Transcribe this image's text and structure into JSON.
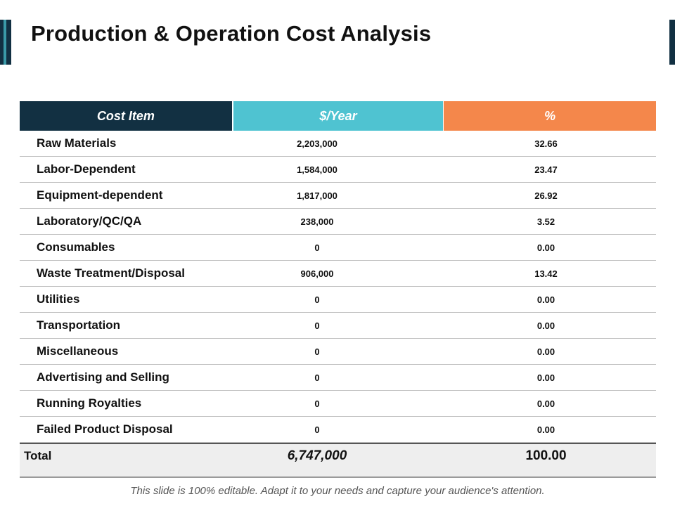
{
  "slide": {
    "title": "Production & Operation Cost Analysis",
    "footer": "This slide is 100% editable. Adapt it to your needs and capture your audience's attention."
  },
  "table": {
    "headers": [
      "Cost Item",
      "$/Year",
      "%"
    ],
    "header_colors": [
      "#123042",
      "#4fc3d1",
      "#f4874b"
    ],
    "rows": [
      [
        "Raw Materials",
        "2,203,000",
        "32.66"
      ],
      [
        "Labor-Dependent",
        "1,584,000",
        "23.47"
      ],
      [
        "Equipment-dependent",
        "1,817,000",
        "26.92"
      ],
      [
        "Laboratory/QC/QA",
        "238,000",
        "3.52"
      ],
      [
        "Consumables",
        "0",
        "0.00"
      ],
      [
        "Waste Treatment/Disposal",
        "906,000",
        "13.42"
      ],
      [
        "Utilities",
        "0",
        "0.00"
      ],
      [
        "Transportation",
        "0",
        "0.00"
      ],
      [
        "Miscellaneous",
        "0",
        "0.00"
      ],
      [
        "Advertising and Selling",
        "0",
        "0.00"
      ],
      [
        "Running Royalties",
        "0",
        "0.00"
      ],
      [
        "Failed Product Disposal",
        "0",
        "0.00"
      ]
    ],
    "total": [
      "Total",
      "6,747,000",
      "100.00"
    ]
  }
}
